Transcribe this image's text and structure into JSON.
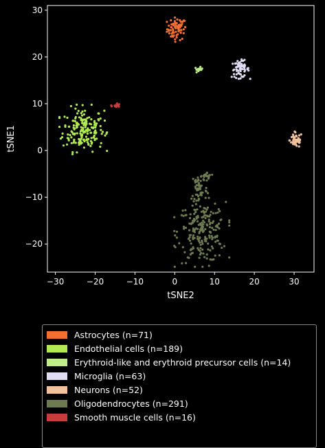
{
  "chart_data": {
    "type": "scatter",
    "xlabel": "tSNE2",
    "ylabel": "tSNE1",
    "xlim": [
      -32,
      35
    ],
    "ylim": [
      -26,
      31
    ],
    "xticks": [
      -30,
      -20,
      -10,
      0,
      10,
      20,
      30
    ],
    "yticks": [
      -20,
      -10,
      0,
      10,
      20,
      30
    ],
    "xtick_labels": [
      "−30",
      "−20",
      "−10",
      "0",
      "10",
      "20",
      "30"
    ],
    "ytick_labels": [
      "−20",
      "−10",
      "0",
      "10",
      "20",
      "30"
    ],
    "background": "#000000",
    "foreground": "#ffffff",
    "legend_position": "below",
    "series": [
      {
        "name": "Astrocytes (n=71)",
        "color": "#f37032",
        "clusters": [
          {
            "center": [
              0.5,
              26.0
            ],
            "n": 71,
            "spread": [
              1.2,
              1.2
            ]
          }
        ]
      },
      {
        "name": "Endothelial cells (n=189)",
        "color": "#b1ea52",
        "clusters": [
          {
            "center": [
              -23.0,
              4.5
            ],
            "n": 189,
            "spread": [
              2.6,
              2.3
            ]
          }
        ]
      },
      {
        "name": "Erythroid-like and erythroid precursor cells (n=14)",
        "color": "#bfed8b",
        "clusters": [
          {
            "center": [
              6.0,
              17.3
            ],
            "n": 14,
            "spread": [
              0.5,
              0.25
            ]
          }
        ]
      },
      {
        "name": "Microglia (n=63)",
        "color": "#e0dcf3",
        "clusters": [
          {
            "center": [
              16.5,
              17.4
            ],
            "n": 63,
            "spread": [
              1.1,
              0.9
            ]
          }
        ]
      },
      {
        "name": "Neurons (n=52)",
        "color": "#f3c29c",
        "clusters": [
          {
            "center": [
              30.5,
              2.2
            ],
            "n": 52,
            "spread": [
              0.8,
              0.8
            ]
          }
        ]
      },
      {
        "name": "Oligodendrocytes (n=291)",
        "color": "#6e7b52",
        "clusters": [
          {
            "center": [
              6.8,
              -17.5
            ],
            "n": 220,
            "spread": [
              3.0,
              3.2
            ]
          },
          {
            "center": [
              6.2,
              -8.0
            ],
            "n": 50,
            "spread": [
              1.0,
              1.8
            ]
          },
          {
            "center": [
              8.2,
              -5.5
            ],
            "n": 21,
            "spread": [
              0.8,
              0.4
            ]
          }
        ]
      },
      {
        "name": "Smooth muscle cells (n=16)",
        "color": "#c73c3c",
        "clusters": [
          {
            "center": [
              -14.8,
              9.6
            ],
            "n": 16,
            "spread": [
              0.5,
              0.25
            ]
          }
        ]
      }
    ]
  }
}
